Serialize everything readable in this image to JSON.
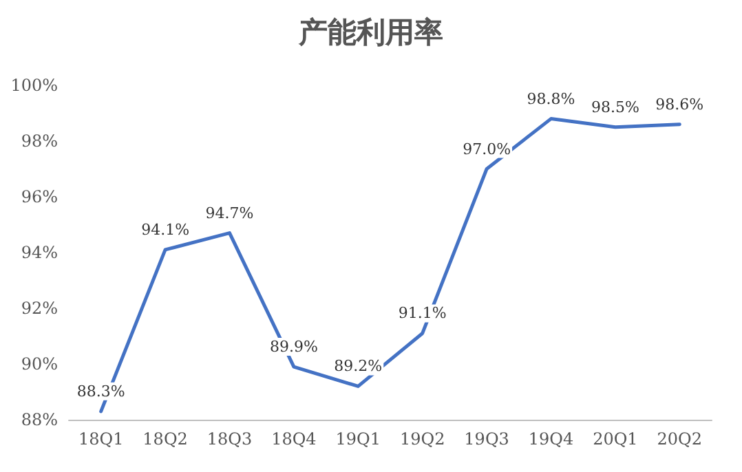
{
  "chart_data": {
    "type": "line",
    "title": "产能利用率",
    "categories": [
      "18Q1",
      "18Q2",
      "18Q3",
      "18Q4",
      "19Q1",
      "19Q2",
      "19Q3",
      "19Q4",
      "20Q1",
      "20Q2"
    ],
    "series": [
      {
        "color": "#4472c4",
        "values": [
          88.3,
          94.1,
          94.7,
          89.9,
          89.2,
          91.1,
          97.0,
          98.8,
          98.5,
          98.6
        ],
        "value_labels": [
          "88.3%",
          "94.1%",
          "94.7%",
          "89.9%",
          "89.2%",
          "91.1%",
          "97.0%",
          "98.8%",
          "98.5%",
          "98.6%"
        ]
      }
    ],
    "ylim": [
      88,
      100
    ],
    "yticks": [
      {
        "value": 88,
        "label": "88%"
      },
      {
        "value": 90,
        "label": "90%"
      },
      {
        "value": 92,
        "label": "92%"
      },
      {
        "value": 94,
        "label": "94%"
      },
      {
        "value": 96,
        "label": "96%"
      },
      {
        "value": 98,
        "label": "98%"
      },
      {
        "value": 100,
        "label": "100%"
      }
    ],
    "grid": false,
    "marker": "none",
    "line_style": "solid"
  }
}
